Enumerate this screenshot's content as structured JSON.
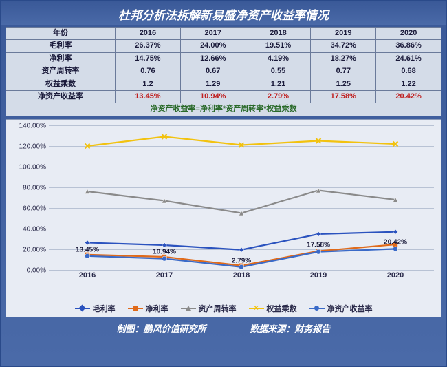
{
  "title": "杜邦分析法拆解新易盛净资产收益率情况",
  "footer_left": "制图：鹏风价值研究所",
  "footer_right": "数据来源：财务报告",
  "table": {
    "header_label": "年份",
    "years": [
      "2016",
      "2017",
      "2018",
      "2019",
      "2020"
    ],
    "rows": [
      {
        "label": "毛利率",
        "values": [
          "26.37%",
          "24.00%",
          "19.51%",
          "34.72%",
          "36.86%"
        ],
        "hl": false
      },
      {
        "label": "净利率",
        "values": [
          "14.75%",
          "12.66%",
          "4.19%",
          "18.27%",
          "24.61%"
        ],
        "hl": false
      },
      {
        "label": "资产周转率",
        "values": [
          "0.76",
          "0.67",
          "0.55",
          "0.77",
          "0.68"
        ],
        "hl": false
      },
      {
        "label": "权益乘数",
        "values": [
          "1.2",
          "1.29",
          "1.21",
          "1.25",
          "1.22"
        ],
        "hl": false
      },
      {
        "label": "净资产收益率",
        "values": [
          "13.45%",
          "10.94%",
          "2.79%",
          "17.58%",
          "20.42%"
        ],
        "hl": true
      }
    ],
    "formula": "净资产收益率=净利率*资产周转率*权益乘数"
  },
  "chart": {
    "ymin": 0,
    "ymax": 140,
    "ytick_step": 20,
    "ytick_format_suffix": ".00%",
    "x_categories": [
      "2016",
      "2017",
      "2018",
      "2019",
      "2020"
    ],
    "grid_color": "#b8c2d4",
    "background": "#e8ecf4",
    "series": [
      {
        "name": "毛利率",
        "color": "#2a52be",
        "marker": "diamond",
        "values": [
          26.37,
          24.0,
          19.51,
          34.72,
          36.86
        ]
      },
      {
        "name": "净利率",
        "color": "#e06a1a",
        "marker": "square",
        "values": [
          14.75,
          12.66,
          4.19,
          18.27,
          24.61
        ]
      },
      {
        "name": "资产周转率",
        "color": "#8a8a8a",
        "marker": "triangle",
        "values": [
          76,
          67,
          55,
          77,
          68
        ]
      },
      {
        "name": "权益乘数",
        "color": "#f2c20f",
        "marker": "cross",
        "values": [
          120,
          129,
          121,
          125,
          122
        ]
      },
      {
        "name": "净资产收益率",
        "color": "#3a6ac8",
        "marker": "circle",
        "values": [
          13.45,
          10.94,
          2.79,
          17.58,
          20.42
        ],
        "labels": [
          "13.45%",
          "10.94%",
          "2.79%",
          "17.58%",
          "20.42%"
        ]
      }
    ],
    "line_width": 2.2,
    "marker_size": 7
  }
}
